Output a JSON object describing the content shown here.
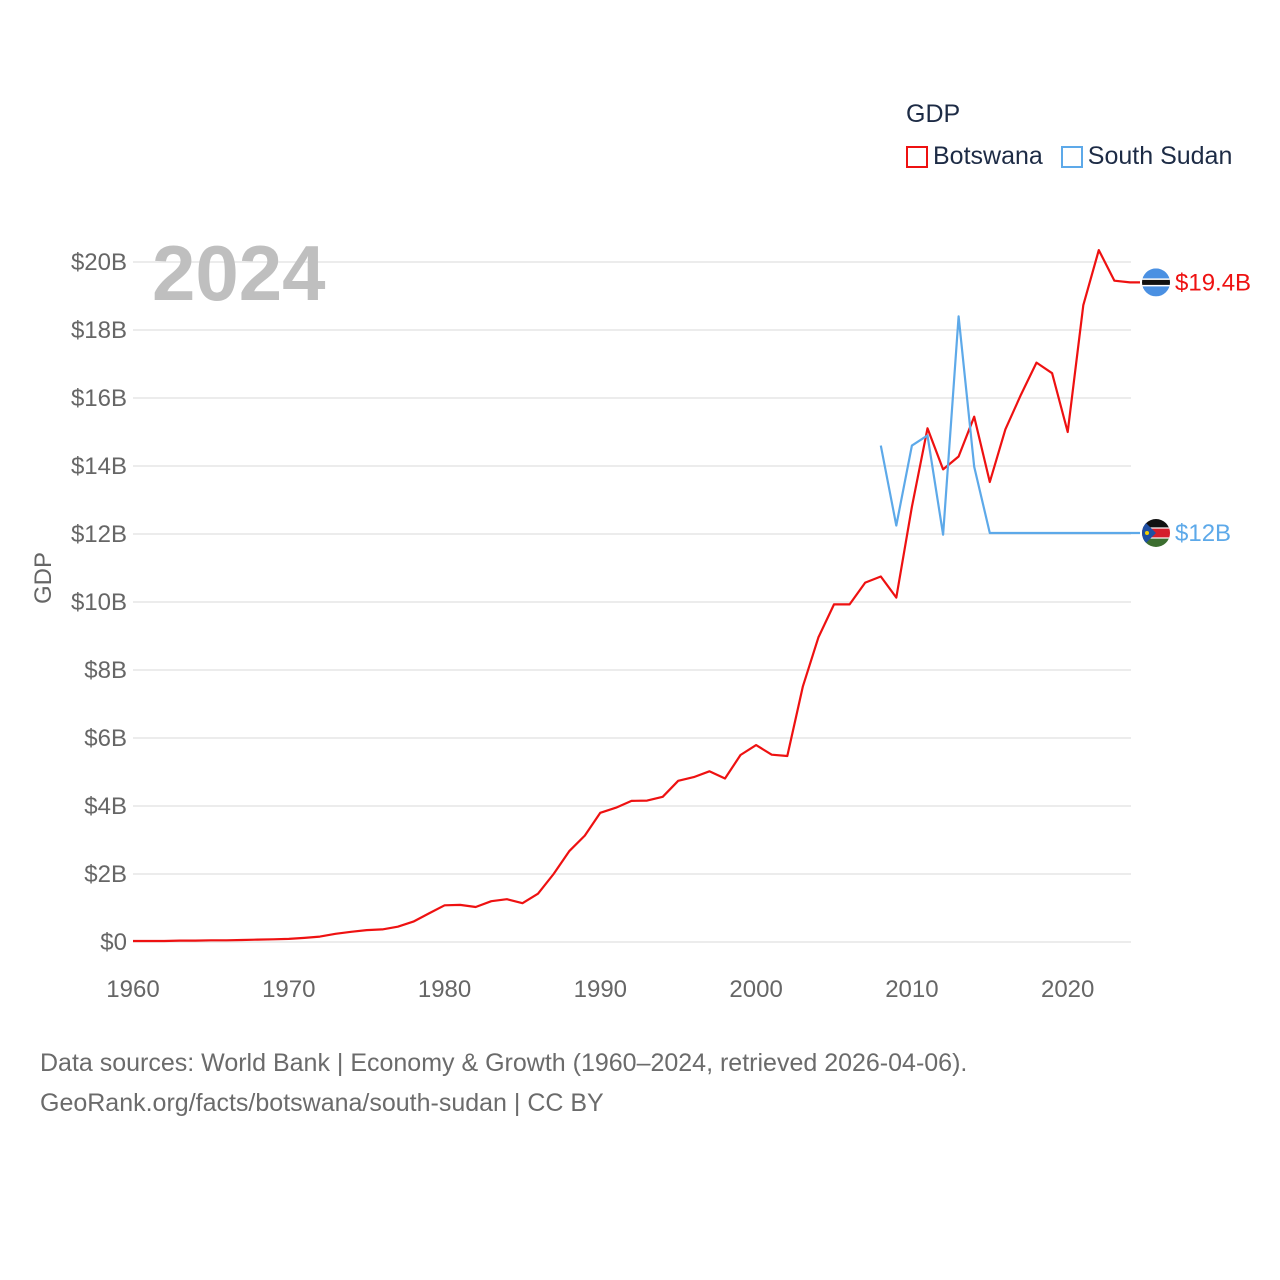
{
  "legend": {
    "title": "GDP",
    "items": [
      {
        "label": "Botswana",
        "color": "#ee1111"
      },
      {
        "label": "South Sudan",
        "color": "#5da9e9"
      }
    ]
  },
  "footer": {
    "line1": "Data sources: World Bank | Economy & Growth (1960–2024, retrieved 2026-04-06).",
    "line2": "GeoRank.org/facts/botswana/south-sudan | CC BY"
  },
  "chart_data": {
    "type": "line",
    "title": "GDP",
    "year_label": "2024",
    "xlabel": "",
    "ylabel": "GDP",
    "xlim": [
      1960,
      2024
    ],
    "ylim": [
      0,
      20
    ],
    "x_ticks": [
      1960,
      1970,
      1980,
      1990,
      2000,
      2010,
      2020
    ],
    "y_ticks": [
      {
        "value": 0,
        "label": "$0"
      },
      {
        "value": 2,
        "label": "$2B"
      },
      {
        "value": 4,
        "label": "$4B"
      },
      {
        "value": 6,
        "label": "$6B"
      },
      {
        "value": 8,
        "label": "$8B"
      },
      {
        "value": 10,
        "label": "$10B"
      },
      {
        "value": 12,
        "label": "$12B"
      },
      {
        "value": 14,
        "label": "$14B"
      },
      {
        "value": 16,
        "label": "$16B"
      },
      {
        "value": 18,
        "label": "$18B"
      },
      {
        "value": 20,
        "label": "$20B"
      }
    ],
    "series": [
      {
        "name": "Botswana",
        "color": "#ee1111",
        "end_label": "$19.4B",
        "x": [
          1960,
          1961,
          1962,
          1963,
          1964,
          1965,
          1966,
          1967,
          1968,
          1969,
          1970,
          1971,
          1972,
          1973,
          1974,
          1975,
          1976,
          1977,
          1978,
          1979,
          1980,
          1981,
          1982,
          1983,
          1984,
          1985,
          1986,
          1987,
          1988,
          1989,
          1990,
          1991,
          1992,
          1993,
          1994,
          1995,
          1996,
          1997,
          1998,
          1999,
          2000,
          2001,
          2002,
          2003,
          2004,
          2005,
          2006,
          2007,
          2008,
          2009,
          2010,
          2011,
          2012,
          2013,
          2014,
          2015,
          2016,
          2017,
          2018,
          2019,
          2020,
          2021,
          2022,
          2023,
          2024
        ],
        "values": [
          0.03,
          0.03,
          0.03,
          0.04,
          0.04,
          0.05,
          0.05,
          0.06,
          0.07,
          0.08,
          0.09,
          0.12,
          0.16,
          0.24,
          0.3,
          0.35,
          0.37,
          0.45,
          0.6,
          0.84,
          1.08,
          1.09,
          1.03,
          1.2,
          1.26,
          1.14,
          1.42,
          2.0,
          2.67,
          3.13,
          3.8,
          3.95,
          4.15,
          4.16,
          4.27,
          4.74,
          4.85,
          5.02,
          4.81,
          5.5,
          5.79,
          5.51,
          5.47,
          7.52,
          8.96,
          9.93,
          9.93,
          10.57,
          10.75,
          10.13,
          12.8,
          15.11,
          13.9,
          14.28,
          15.45,
          13.53,
          15.08,
          16.1,
          17.04,
          16.73,
          15.0,
          18.73,
          20.35,
          19.45,
          19.4
        ]
      },
      {
        "name": "South Sudan",
        "color": "#5da9e9",
        "end_label": "$12B",
        "x": [
          2008,
          2009,
          2010,
          2011,
          2012,
          2013,
          2014,
          2015,
          2016,
          2017,
          2018,
          2019,
          2020,
          2021,
          2022,
          2023,
          2024
        ],
        "values": [
          14.6,
          12.25,
          14.6,
          14.9,
          11.98,
          18.4,
          13.98,
          12.03,
          12.03,
          12.03,
          12.03,
          12.03,
          12.03,
          12.03,
          12.03,
          12.03,
          12.03
        ]
      }
    ],
    "grid": true,
    "legend_position": "top-right"
  }
}
